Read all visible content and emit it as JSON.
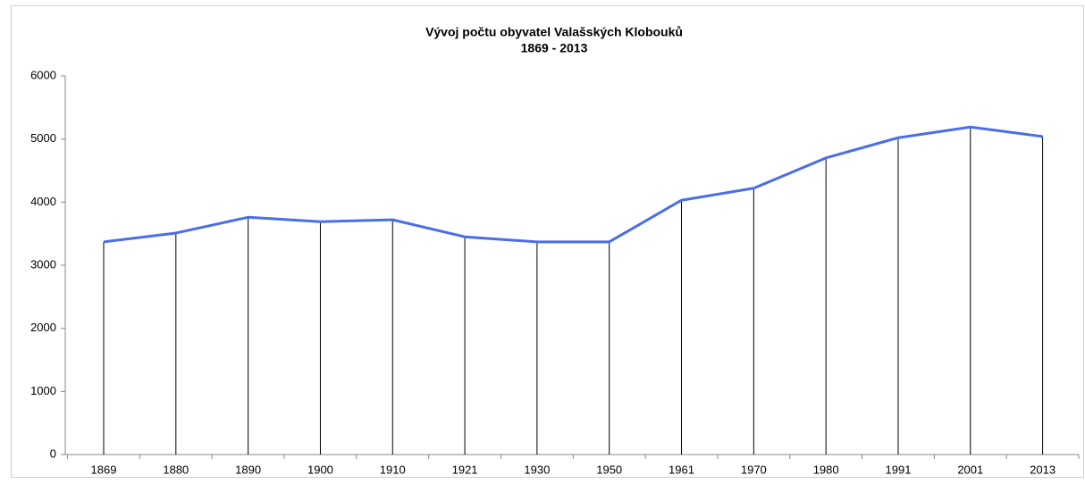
{
  "chart_data": {
    "type": "line",
    "title": "Vývoj počtu obyvatel Valašských Klobouků",
    "subtitle": "1869 - 2013",
    "categories": [
      "1869",
      "1880",
      "1890",
      "1900",
      "1910",
      "1921",
      "1930",
      "1950",
      "1961",
      "1970",
      "1980",
      "1991",
      "2001",
      "2013"
    ],
    "values": [
      3370,
      3510,
      3760,
      3690,
      3720,
      3450,
      3370,
      3370,
      4030,
      4220,
      4700,
      5020,
      5190,
      5040
    ],
    "color": "#4a6ee8",
    "drop_lines": true,
    "ylim": [
      0,
      6000
    ],
    "yticks": [
      0,
      1000,
      2000,
      3000,
      4000,
      5000,
      6000
    ],
    "grid": false
  }
}
